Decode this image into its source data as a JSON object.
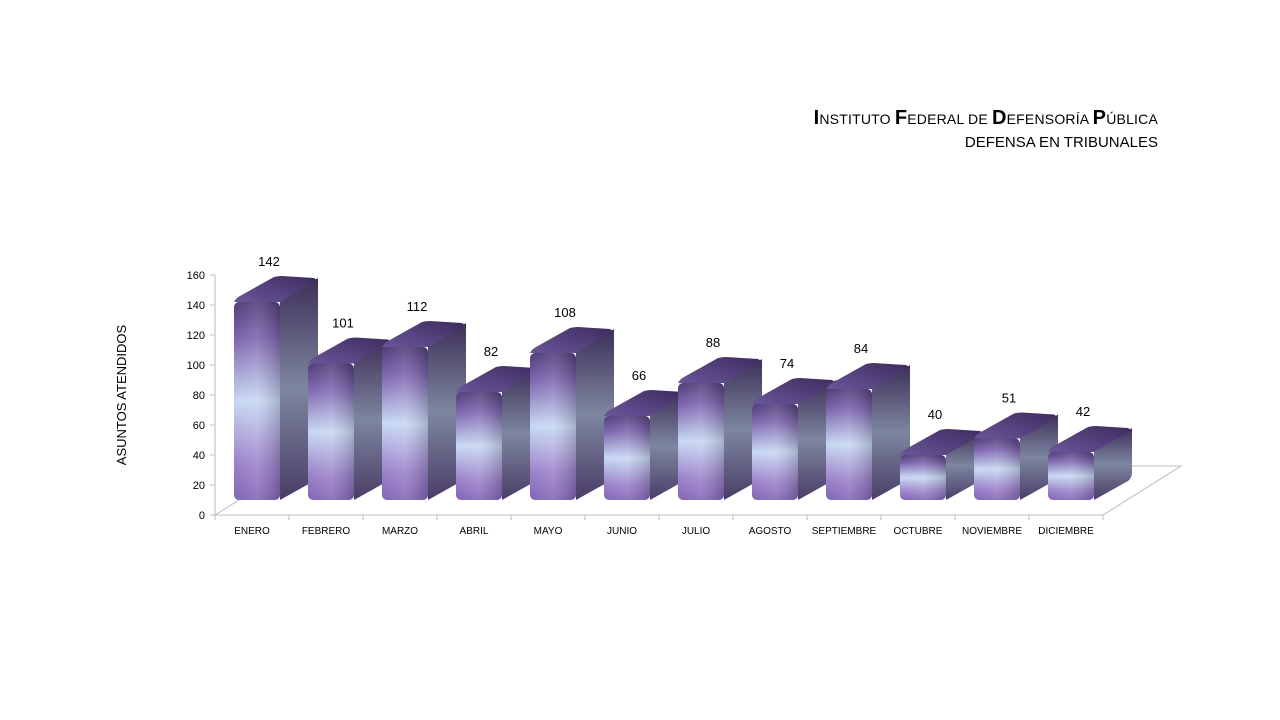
{
  "header": {
    "title": "INSTITUTO FEDERAL DE DEFENSORÍA PÚBLICA",
    "subtitle": "DEFENSA EN TRIBUNALES"
  },
  "chart_data": {
    "type": "bar",
    "three_d": true,
    "categories": [
      "ENERO",
      "FEBRERO",
      "MARZO",
      "ABRIL",
      "MAYO",
      "JUNIO",
      "JULIO",
      "AGOSTO",
      "SEPTIEMBRE",
      "OCTUBRE",
      "NOVIEMBRE",
      "DICIEMBRE"
    ],
    "values": [
      142,
      101,
      112,
      82,
      108,
      66,
      88,
      74,
      84,
      40,
      51,
      42
    ],
    "xlabel": "",
    "ylabel": "ASUNTOS ATENDIDOS",
    "ylim": [
      0,
      160
    ],
    "yticks": [
      0,
      20,
      40,
      60,
      80,
      100,
      120,
      140,
      160
    ],
    "data_labels": true,
    "gridlines": false,
    "legend": "none",
    "colors": {
      "bar_front_dark": "#8a6db8",
      "bar_front_light": "#c8d8f2",
      "bar_side": "#5e4d80",
      "bar_top": "#4e3a72"
    }
  }
}
